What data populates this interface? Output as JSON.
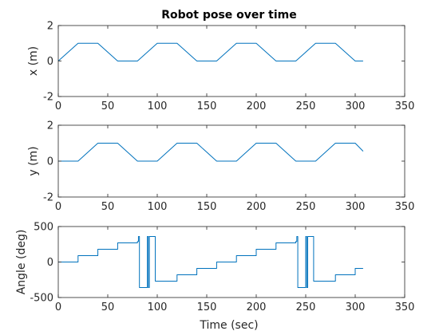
{
  "colors": {
    "series": "#0072BD",
    "axes": "#262626"
  },
  "chart_data": [
    {
      "type": "line",
      "title": "Robot pose over time",
      "xlabel": "",
      "ylabel": "x (m)",
      "xlim": [
        0,
        350
      ],
      "ylim": [
        -2,
        2
      ],
      "xticks": [
        "0",
        "50",
        "100",
        "150",
        "200",
        "250",
        "300",
        "350"
      ],
      "yticks": [
        "-2",
        "0",
        "2"
      ],
      "grid": false,
      "series": [
        {
          "x": [
            0,
            20,
            40,
            60,
            80,
            100,
            120,
            140,
            160,
            180,
            200,
            220,
            240,
            260,
            280,
            300,
            308
          ],
          "y": [
            0,
            1,
            1,
            0,
            0,
            1,
            1,
            0,
            0,
            1,
            1,
            0,
            0,
            1,
            1,
            0,
            0
          ]
        }
      ]
    },
    {
      "type": "line",
      "title": "",
      "xlabel": "",
      "ylabel": "y (m)",
      "xlim": [
        0,
        350
      ],
      "ylim": [
        -2,
        2
      ],
      "xticks": [
        "0",
        "50",
        "100",
        "150",
        "200",
        "250",
        "300",
        "350"
      ],
      "yticks": [
        "-2",
        "0",
        "2"
      ],
      "grid": false,
      "series": [
        {
          "x": [
            0,
            20,
            40,
            60,
            80,
            100,
            120,
            140,
            160,
            180,
            200,
            220,
            240,
            260,
            280,
            300,
            308
          ],
          "y": [
            0,
            0,
            1,
            1,
            0,
            0,
            1,
            1,
            0,
            0,
            1,
            1,
            0,
            0,
            1,
            1,
            0.55
          ]
        }
      ]
    },
    {
      "type": "line",
      "title": "",
      "xlabel": "Time (sec)",
      "ylabel": "Angle (deg)",
      "xlim": [
        0,
        350
      ],
      "ylim": [
        -500,
        500
      ],
      "xticks": [
        "0",
        "50",
        "100",
        "150",
        "200",
        "250",
        "300",
        "350"
      ],
      "yticks": [
        "-500",
        "0",
        "500"
      ],
      "grid": false,
      "series": [
        {
          "x": [
            0,
            20,
            20,
            40,
            40,
            60,
            60,
            80,
            80,
            81,
            81,
            82,
            82,
            83,
            83,
            90,
            90,
            91,
            91,
            92,
            92,
            98,
            98,
            100,
            100,
            120,
            120,
            140,
            140,
            160,
            160,
            180,
            180,
            200,
            200,
            220,
            220,
            240,
            240,
            241,
            241,
            242,
            242,
            243,
            243,
            250,
            250,
            251,
            251,
            252,
            252,
            258,
            258,
            260,
            260,
            280,
            280,
            300,
            300,
            308
          ],
          "y": [
            0,
            0,
            90,
            90,
            180,
            180,
            270,
            270,
            290,
            290,
            360,
            360,
            -360,
            -360,
            -360,
            -360,
            360,
            360,
            -360,
            -360,
            360,
            360,
            -270,
            -270,
            -270,
            -270,
            -180,
            -180,
            -90,
            -90,
            0,
            0,
            90,
            90,
            180,
            180,
            270,
            270,
            290,
            290,
            360,
            360,
            -360,
            -360,
            -360,
            -360,
            360,
            360,
            -360,
            -360,
            360,
            360,
            -270,
            -270,
            -270,
            -270,
            -180,
            -180,
            -90,
            -90
          ]
        }
      ]
    }
  ]
}
